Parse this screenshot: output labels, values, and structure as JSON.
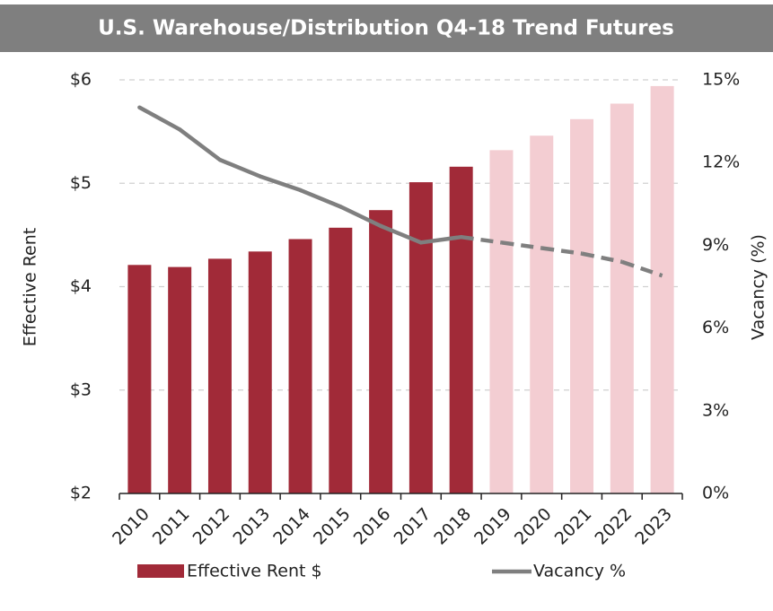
{
  "chart_data": {
    "type": "bar_line",
    "title": "U.S. Warehouse/Distribution Q4-18 Trend Futures",
    "ylabel": "Effective Rent",
    "y2label": "Vacancy (%)",
    "categories": [
      "2010",
      "2011",
      "2012",
      "2013",
      "2014",
      "2015",
      "2016",
      "2017",
      "2018",
      "2019",
      "2020",
      "2021",
      "2022",
      "2023"
    ],
    "ylim": [
      2,
      6
    ],
    "yticks": [
      {
        "value": 2,
        "label": "$2"
      },
      {
        "value": 3,
        "label": "$3"
      },
      {
        "value": 4,
        "label": "$4"
      },
      {
        "value": 5,
        "label": "$5"
      },
      {
        "value": 6,
        "label": "$6"
      }
    ],
    "y2lim": [
      0,
      15
    ],
    "y2ticks": [
      {
        "value": 0,
        "label": "0%"
      },
      {
        "value": 3,
        "label": "3%"
      },
      {
        "value": 6,
        "label": "6%"
      },
      {
        "value": 9,
        "label": "9%"
      },
      {
        "value": 12,
        "label": "12%"
      },
      {
        "value": 15,
        "label": "15%"
      }
    ],
    "grid": true,
    "legend": "bottom",
    "series": [
      {
        "name": "Effective Rent $",
        "kind": "bar",
        "color": "#a12a38",
        "colors": [
          "#a12a38",
          "#a12a38",
          "#a12a38",
          "#a12a38",
          "#a12a38",
          "#a12a38",
          "#a12a38",
          "#a12a38",
          "#a12a38",
          "#f3cdd2",
          "#f3cdd2",
          "#f3cdd2",
          "#f3cdd2",
          "#f3cdd2"
        ],
        "values": [
          4.21,
          4.19,
          4.27,
          4.34,
          4.46,
          4.57,
          4.74,
          5.01,
          5.16,
          5.32,
          5.46,
          5.62,
          5.77,
          5.94
        ]
      },
      {
        "name": "Vacancy %",
        "kind": "line",
        "axis": "y2",
        "color": "#7f7f7f",
        "styles": [
          "solid",
          "solid",
          "solid",
          "solid",
          "solid",
          "solid",
          "solid",
          "solid",
          "solid",
          "dashed",
          "dashed",
          "dashed",
          "dashed",
          "dashed"
        ],
        "values": [
          14.0,
          13.2,
          12.1,
          11.5,
          11.0,
          10.4,
          9.7,
          9.1,
          9.3,
          9.1,
          8.9,
          8.7,
          8.4,
          7.9
        ]
      }
    ]
  }
}
